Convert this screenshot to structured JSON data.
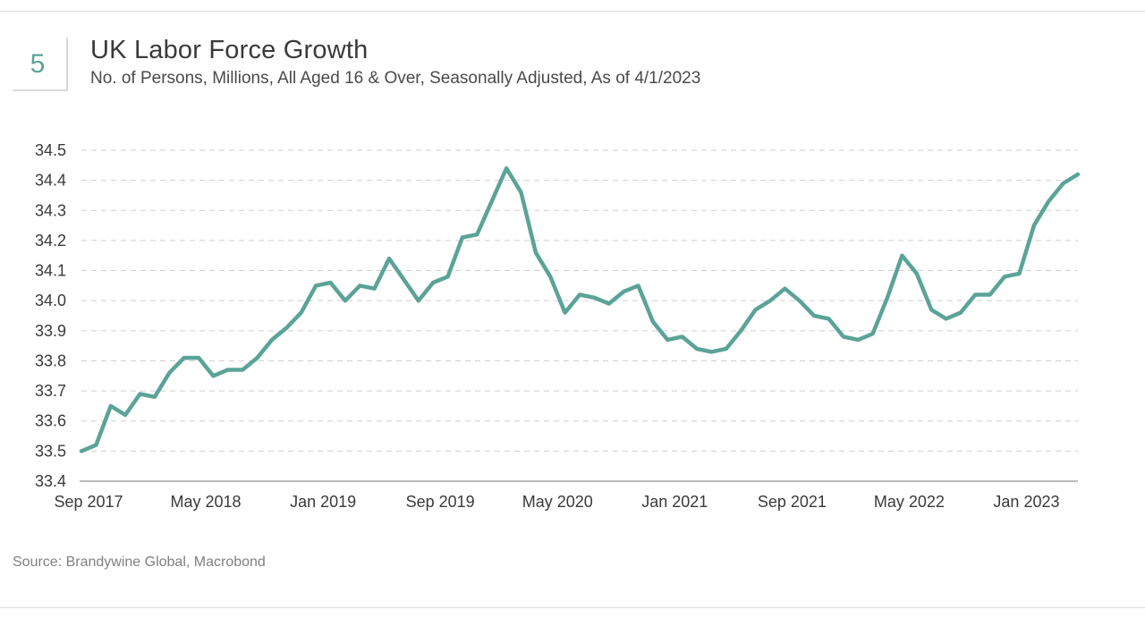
{
  "header": {
    "chart_number": "5",
    "title": "UK Labor Force Growth",
    "subtitle": "No. of Persons, Millions, All Aged 16 & Over, Seasonally Adjusted, As of 4/1/2023"
  },
  "source": "Source: Brandywine Global, Macrobond",
  "colors": {
    "line": "#5ba398",
    "accent": "#5ba398",
    "grid": "#cfcfcf",
    "axis": "#777777"
  },
  "chart_data": {
    "type": "line",
    "title": "UK Labor Force Growth",
    "xlabel": "",
    "ylabel": "No. of Persons, Millions",
    "ylim": [
      33.4,
      34.5
    ],
    "yticks": [
      33.4,
      33.5,
      33.6,
      33.7,
      33.8,
      33.9,
      34.0,
      34.1,
      34.2,
      34.3,
      34.4,
      34.5
    ],
    "ytick_labels": [
      "33.4",
      "33.5",
      "33.6",
      "33.7",
      "33.8",
      "33.9",
      "34.0",
      "34.1",
      "34.2",
      "34.3",
      "34.4",
      "34.5"
    ],
    "xtick_labels": [
      "Sep 2017",
      "May 2018",
      "Jan 2019",
      "Sep 2019",
      "May 2020",
      "Jan 2021",
      "Sep 2021",
      "May 2022",
      "Jan 2023"
    ],
    "xtick_positions": [
      0,
      8,
      16,
      24,
      32,
      40,
      48,
      56,
      64
    ],
    "grid": true,
    "series": [
      {
        "name": "UK Labor Force",
        "start": "Sep 2017",
        "frequency": "monthly",
        "values": [
          33.5,
          33.52,
          33.65,
          33.62,
          33.69,
          33.68,
          33.76,
          33.81,
          33.81,
          33.75,
          33.77,
          33.77,
          33.81,
          33.87,
          33.91,
          33.96,
          34.05,
          34.06,
          34.0,
          34.05,
          34.04,
          34.14,
          34.07,
          34.0,
          34.06,
          34.08,
          34.21,
          34.22,
          34.33,
          34.44,
          34.36,
          34.16,
          34.08,
          33.96,
          34.02,
          34.01,
          33.99,
          34.03,
          34.05,
          33.93,
          33.87,
          33.88,
          33.84,
          33.83,
          33.84,
          33.9,
          33.97,
          34.0,
          34.04,
          34.0,
          33.95,
          33.94,
          33.88,
          33.87,
          33.89,
          34.01,
          34.15,
          34.09,
          33.97,
          33.94,
          33.96,
          34.02,
          34.02,
          34.08,
          34.09,
          34.25,
          34.33,
          34.39,
          34.42
        ]
      }
    ]
  }
}
